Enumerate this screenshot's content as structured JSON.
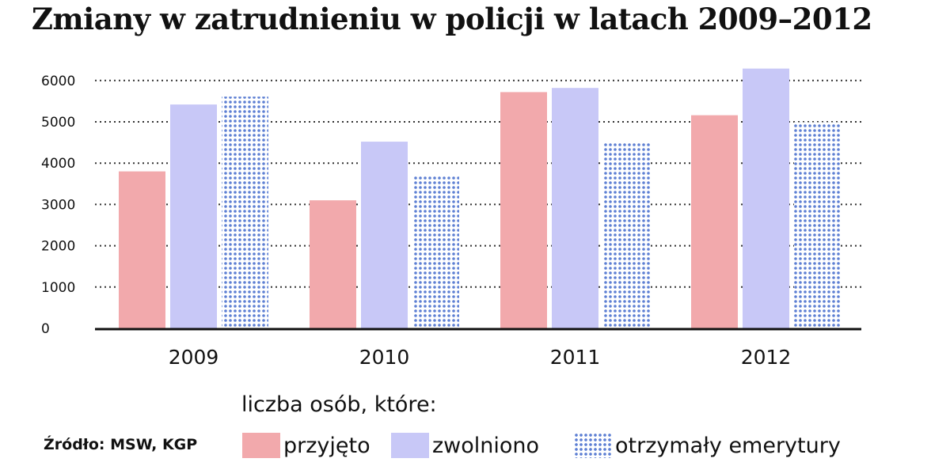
{
  "chart_data": {
    "type": "bar",
    "title": "Zmiany w zatrudnieniu w policji w latach 2009–2012",
    "categories": [
      "2009",
      "2010",
      "2011",
      "2012"
    ],
    "yticks": [
      "0",
      "1000",
      "2000",
      "3000",
      "4000",
      "5000",
      "6000"
    ],
    "ylim": [
      0,
      6300
    ],
    "grid": true,
    "legend_title": "liczba osób, które:",
    "legend_position": "bottom",
    "series": [
      {
        "name": "przyjęto",
        "color": "#f2a9ac",
        "values": [
          3800,
          3100,
          5720,
          5160
        ]
      },
      {
        "name": "zwolniono",
        "color": "#c8c8f7",
        "values": [
          5420,
          4520,
          5820,
          6290
        ]
      },
      {
        "name": "otrzymały emerytury",
        "color": "#5d7fd3",
        "values": [
          5610,
          3690,
          4490,
          4990
        ]
      }
    ],
    "source": "Źródło: MSW, KGP"
  }
}
